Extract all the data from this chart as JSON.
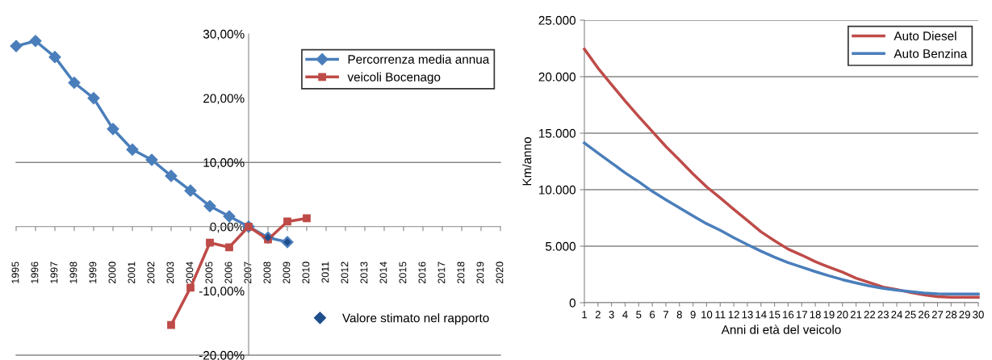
{
  "chart_data": [
    {
      "type": "line",
      "categories": [
        "1995",
        "1996",
        "1997",
        "1998",
        "1999",
        "2000",
        "2001",
        "2002",
        "2003",
        "2004",
        "2005",
        "2006",
        "2007",
        "2008",
        "2009",
        "2010",
        "2011",
        "2012",
        "2013",
        "2014",
        "2015",
        "2016",
        "2017",
        "2018",
        "2019",
        "2020"
      ],
      "series": [
        {
          "name": "Percorrenza media annua",
          "color": "#4a7ebb",
          "marker": "diamond",
          "values": [
            28.1,
            28.9,
            26.4,
            22.4,
            20.0,
            15.2,
            12.0,
            10.4,
            7.9,
            5.6,
            3.2,
            1.6,
            0,
            -1.7,
            -2.4,
            null,
            null,
            null,
            null,
            null,
            null,
            null,
            null,
            null,
            null,
            null
          ]
        },
        {
          "name": "veicoli Bocenago",
          "color": "#be4b48",
          "marker": "square",
          "values": [
            null,
            null,
            null,
            null,
            null,
            null,
            null,
            null,
            -15.3,
            -9.5,
            -2.5,
            -3.2,
            0,
            -2.0,
            0.8,
            1.3,
            null,
            null,
            null,
            null,
            null,
            null,
            null,
            null,
            null,
            null
          ]
        },
        {
          "name": "Valore stimato nel rapporto",
          "type": "scatter",
          "color": "#1f4e8c",
          "marker": "diamond",
          "values": [
            null,
            null,
            null,
            null,
            null,
            null,
            null,
            null,
            null,
            null,
            null,
            null,
            null,
            -1.7,
            -2.4,
            null,
            null,
            null,
            null,
            null,
            null,
            null,
            null,
            null,
            null,
            null
          ]
        }
      ],
      "ylim": [
        -20,
        30
      ],
      "yticks": [
        {
          "value": -20,
          "label": "-20,00%"
        },
        {
          "value": -10,
          "label": "-10,00%"
        },
        {
          "value": 0,
          "label": "0,00%"
        },
        {
          "value": 10,
          "label": "10,00%"
        },
        {
          "value": 20,
          "label": "20,00%"
        },
        {
          "value": 30,
          "label": "30,00%"
        }
      ],
      "ref_lines": [
        {
          "axis": "y",
          "value": 10,
          "color": "#868686"
        },
        {
          "axis": "y",
          "value": -20,
          "color": "#868686"
        }
      ],
      "grid": false,
      "legend": "top right",
      "line_style": "solid"
    },
    {
      "type": "line",
      "xlabel": "Anni di età del veicolo",
      "ylabel": "Km/anno",
      "categories": [
        "1",
        "2",
        "3",
        "4",
        "5",
        "6",
        "7",
        "8",
        "9",
        "10",
        "11",
        "12",
        "13",
        "14",
        "15",
        "16",
        "17",
        "18",
        "19",
        "20",
        "21",
        "22",
        "23",
        "24",
        "25",
        "26",
        "27",
        "28",
        "29",
        "30"
      ],
      "series": [
        {
          "name": "Auto Diesel",
          "color": "#be4b48",
          "values": [
            22440,
            20760,
            19300,
            17850,
            16470,
            15150,
            13820,
            12630,
            11390,
            10250,
            9270,
            8260,
            7280,
            6280,
            5480,
            4740,
            4210,
            3630,
            3150,
            2700,
            2170,
            1770,
            1380,
            1170,
            900,
            690,
            530,
            480,
            480,
            480
          ]
        },
        {
          "name": "Auto Benzina",
          "color": "#4a7ebb",
          "values": [
            14140,
            13240,
            12370,
            11490,
            10700,
            9850,
            9110,
            8400,
            7680,
            6990,
            6410,
            5750,
            5140,
            4560,
            4030,
            3550,
            3150,
            2750,
            2380,
            2040,
            1750,
            1480,
            1270,
            1110,
            980,
            850,
            790,
            770,
            770,
            770
          ]
        }
      ],
      "ylim": [
        0,
        25000
      ],
      "yticks": [
        {
          "value": 0,
          "label": "0"
        },
        {
          "value": 5000,
          "label": "5.000"
        },
        {
          "value": 10000,
          "label": "10.000"
        },
        {
          "value": 15000,
          "label": "15.000"
        },
        {
          "value": 20000,
          "label": "20.000"
        },
        {
          "value": 25000,
          "label": "25.000"
        }
      ],
      "grid": "y",
      "legend": "top right",
      "marker": "none",
      "line_style": "solid"
    }
  ]
}
